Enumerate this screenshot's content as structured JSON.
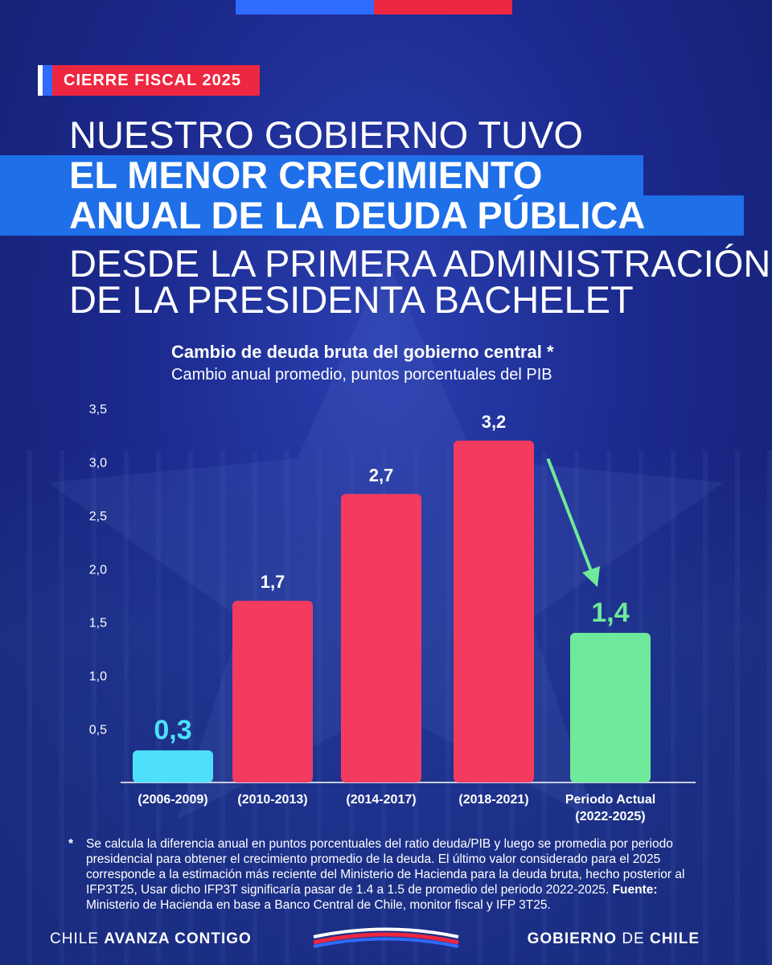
{
  "tag": "CIERRE FISCAL 2025",
  "headline": {
    "line1": "NUESTRO GOBIERNO TUVO",
    "line2": "EL MENOR CRECIMIENTO",
    "line3": "ANUAL DE LA DEUDA PÚBLICA",
    "line4": "DESDE LA PRIMERA ADMINISTRACIÓN",
    "line5": "DE LA PRESIDENTA BACHELET"
  },
  "colors": {
    "background": "#1c2a8e",
    "red_bar": "#f23b5f",
    "cyan_bar": "#4ee0fb",
    "green_bar": "#6fe99a",
    "accent_blue": "#1f6fe8"
  },
  "chart_data": {
    "type": "bar",
    "title": "Cambio de deuda bruta del gobierno central *",
    "subtitle": "Cambio anual promedio, puntos porcentuales del PIB",
    "categories": [
      "(2006-2009)",
      "(2010-2013)",
      "(2014-2017)",
      "(2018-2021)",
      "Periodo Actual\n(2022-2025)"
    ],
    "values": [
      0.3,
      1.7,
      2.7,
      3.2,
      1.4
    ],
    "value_labels": [
      "0,3",
      "1,7",
      "2,7",
      "3,2",
      "1,4"
    ],
    "bar_colors": [
      "#4ee0fb",
      "#f23b5f",
      "#f23b5f",
      "#f23b5f",
      "#6fe99a"
    ],
    "yticks": [
      "0,5",
      "1,0",
      "1,5",
      "2,0",
      "2,5",
      "3,0",
      "3,5"
    ],
    "ylim": [
      0,
      3.5
    ],
    "grid": false,
    "annotation": "arrow pointing from 3,2 down to 1,4"
  },
  "note": {
    "asterisk": "*",
    "text": "Se calcula la diferencia anual en puntos porcentuales del ratio deuda/PIB y luego se promedia por periodo presidencial para obtener el crecimiento promedio de la deuda. El último valor considerado para el 2025 corresponde a la estimación más reciente del Ministerio de Hacienda para la deuda bruta, hecho posterior al IFP3T25, Usar dicho IFP3T significaría pasar de 1.4 a 1.5 de promedio del periodo 2022-2025.",
    "source_label": "Fuente:",
    "source_text": "Ministerio de Hacienda en base a Banco Central de Chile, monitor fiscal y IFP 3T25."
  },
  "footer": {
    "left_a": "CHILE",
    "left_b": "AVANZA CONTIGO",
    "right_a": "GOBIERNO",
    "right_b": "DE",
    "right_c": "CHILE"
  }
}
